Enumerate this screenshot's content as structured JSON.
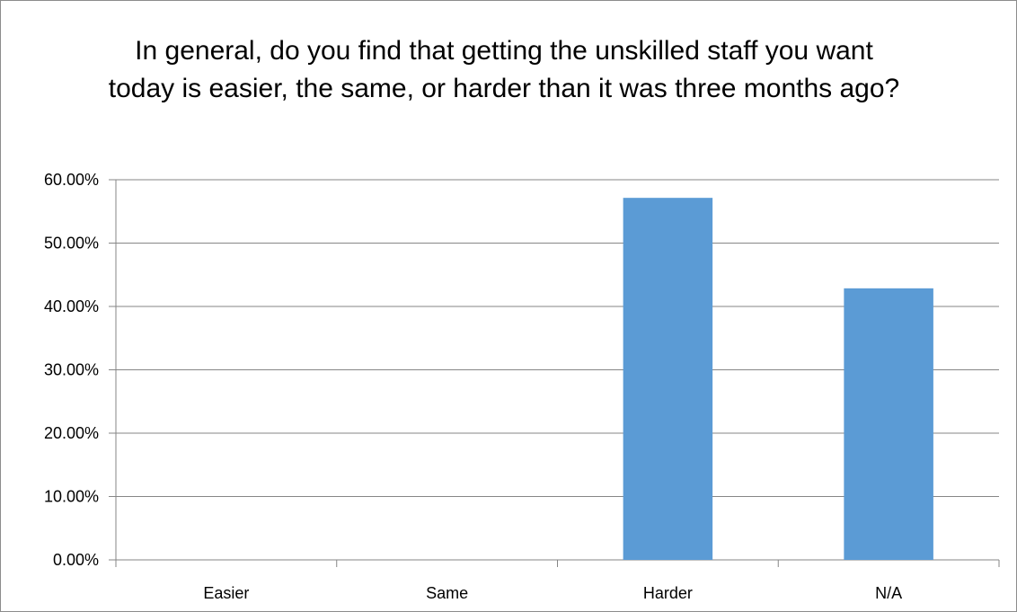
{
  "chart_data": {
    "type": "bar",
    "title": "In general, do you find that getting the unskilled staff you want today is easier, the same, or harder than it was three months ago?",
    "categories": [
      "Easier",
      "Same",
      "Harder",
      "N/A"
    ],
    "values": [
      0,
      0,
      57.14,
      42.86
    ],
    "y_ticks": [
      "0.00%",
      "10.00%",
      "20.00%",
      "30.00%",
      "40.00%",
      "50.00%",
      "60.00%"
    ],
    "ylim": [
      0,
      60
    ],
    "grid": true,
    "legend": "none",
    "bar_color": "#5b9bd5",
    "grid_color": "#868686"
  }
}
